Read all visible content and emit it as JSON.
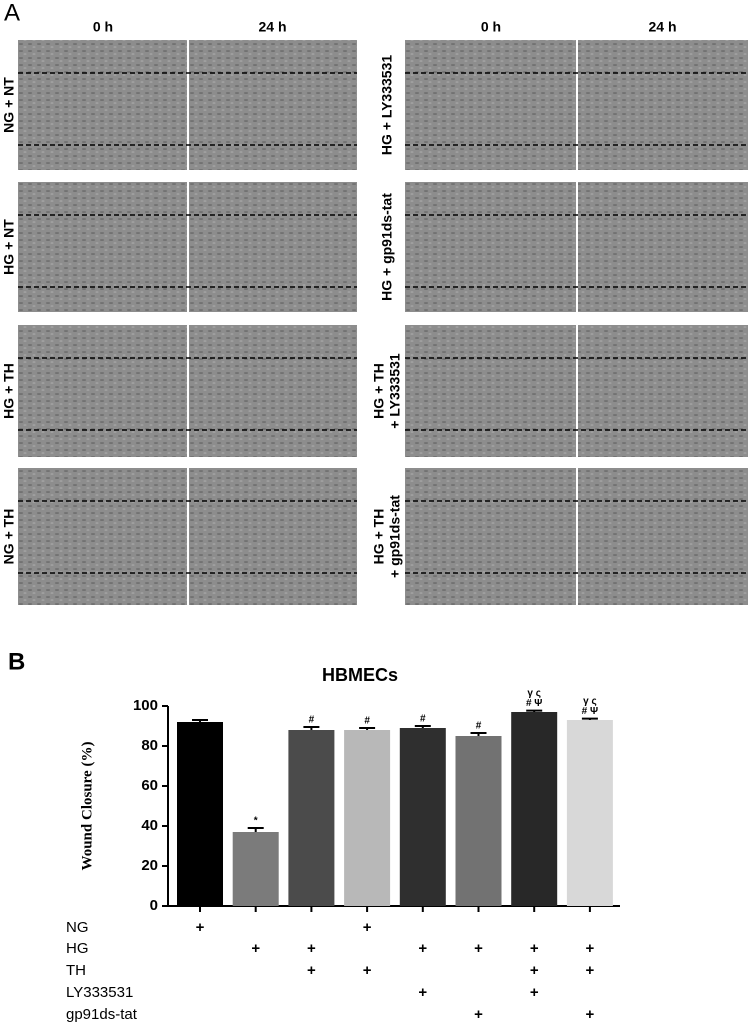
{
  "panel_a": {
    "label": "A",
    "column_headers": [
      "0 h",
      "24 h"
    ],
    "rows_left": [
      [
        "NG + NT"
      ],
      [
        "HG + NT"
      ],
      [
        "HG + TH"
      ],
      [
        "NG + TH"
      ]
    ],
    "rows_right": [
      [
        "HG + LY333531"
      ],
      [
        "HG + gp91ds-tat"
      ],
      [
        "HG + TH",
        "+ LY333531"
      ],
      [
        "HG + TH",
        "+ gp91ds-tat"
      ]
    ]
  },
  "chart_data": {
    "type": "bar",
    "panel_label": "B",
    "title": "HBMECs",
    "y_label": "Wound Closure (%)",
    "ylim": [
      0,
      100
    ],
    "yticks": [
      0,
      20,
      40,
      60,
      80,
      100
    ],
    "values": [
      92,
      37,
      88,
      88,
      89,
      85,
      97,
      93
    ],
    "errors": [
      1,
      2,
      1.5,
      1,
      1,
      1.5,
      0.7,
      0.7
    ],
    "colors": [
      "#000000",
      "#7b7b7b",
      "#4b4b4b",
      "#b8b8b8",
      "#2f2f2f",
      "#727272",
      "#282828",
      "#d8d8d8"
    ],
    "annotations": [
      null,
      "*",
      "#",
      "#",
      "#",
      "#",
      "# Ψ",
      "# Ψ"
    ],
    "annotations_upper": [
      null,
      null,
      null,
      null,
      null,
      null,
      "γ ς",
      "γ ς"
    ],
    "treatments": [
      {
        "name": "NG",
        "marks": [
          "+",
          null,
          null,
          "+",
          null,
          null,
          null,
          null
        ]
      },
      {
        "name": "HG",
        "marks": [
          null,
          "+",
          "+",
          null,
          "+",
          "+",
          "+",
          "+"
        ]
      },
      {
        "name": "TH",
        "marks": [
          null,
          null,
          "+",
          "+",
          null,
          null,
          "+",
          "+"
        ]
      },
      {
        "name": "LY333531",
        "marks": [
          null,
          null,
          null,
          null,
          "+",
          null,
          "+",
          null
        ]
      },
      {
        "name": "gp91ds-tat",
        "marks": [
          null,
          null,
          null,
          null,
          null,
          "+",
          null,
          "+"
        ]
      }
    ]
  }
}
